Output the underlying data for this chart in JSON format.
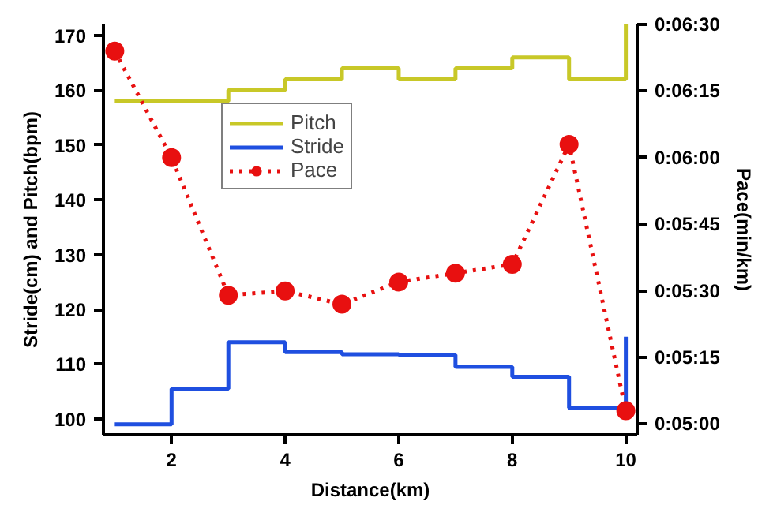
{
  "chart_data": {
    "type": "line",
    "xlabel": "Distance(km)",
    "ylabel": "Stride(cm) and Pitch(bpm)",
    "y2label": "Pace(min/km)",
    "x": [
      1,
      2,
      3,
      4,
      5,
      6,
      7,
      8,
      9,
      10
    ],
    "xlim": [
      0.8,
      10.2
    ],
    "xticks": [
      2,
      4,
      6,
      8,
      10
    ],
    "ylim": [
      97.1,
      172
    ],
    "yticks": [
      100,
      110,
      120,
      130,
      140,
      150,
      160,
      170
    ],
    "y2lim": [
      297.6,
      390
    ],
    "y2ticks": [
      {
        "value": 300,
        "label": "0:05:00"
      },
      {
        "value": 315,
        "label": "0:05:15"
      },
      {
        "value": 330,
        "label": "0:05:30"
      },
      {
        "value": 345,
        "label": "0:05:45"
      },
      {
        "value": 360,
        "label": "0:06:00"
      },
      {
        "value": 375,
        "label": "0:06:15"
      },
      {
        "value": 390,
        "label": "0:06:30"
      }
    ],
    "grid": false,
    "legend": "top left",
    "series": [
      {
        "name": "Pitch",
        "type": "step",
        "color": "#c8c828",
        "values": [
          158,
          158,
          160,
          162,
          164,
          162,
          164,
          166,
          162,
          172
        ]
      },
      {
        "name": "Stride",
        "type": "step",
        "color": "#1f4fe0",
        "values": [
          99,
          105.5,
          114,
          112.2,
          111.8,
          111.7,
          109.5,
          107.7,
          102,
          115
        ]
      },
      {
        "name": "Pace",
        "axis": "y2",
        "color": "#e81010",
        "marker": "circle",
        "line_style": "dotted",
        "values": [
          384,
          360,
          329,
          330,
          327,
          332,
          334,
          336,
          363,
          303
        ]
      }
    ]
  }
}
